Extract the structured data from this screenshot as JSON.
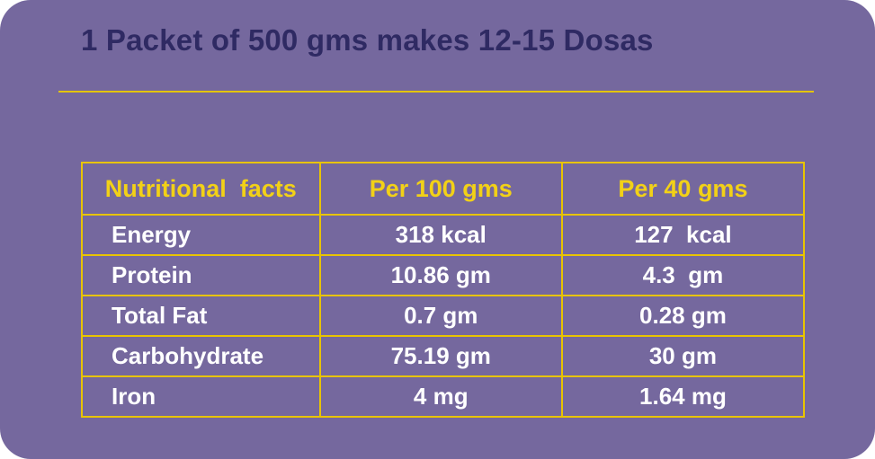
{
  "colors": {
    "background_purple": "#75689e",
    "title_dark_purple": "#2f2a63",
    "accent_yellow": "#e8c400",
    "header_text_yellow": "#f2d117",
    "cell_text_white": "#ffffff"
  },
  "title": "1 Packet of 500 gms makes 12-15 Dosas",
  "chart_data": {
    "type": "table",
    "title": "Nutritional facts",
    "columns": [
      "Nutritional  facts",
      "Per 100 gms",
      "Per 40 gms"
    ],
    "rows": [
      [
        "Energy",
        "318 kcal",
        "127  kcal"
      ],
      [
        "Protein",
        "10.86 gm",
        "4.3  gm"
      ],
      [
        "Total Fat",
        "0.7 gm",
        "0.28 gm"
      ],
      [
        "Carbohydrate",
        "75.19 gm",
        "30 gm"
      ],
      [
        "Iron",
        "4 mg",
        "1.64 mg"
      ]
    ]
  }
}
